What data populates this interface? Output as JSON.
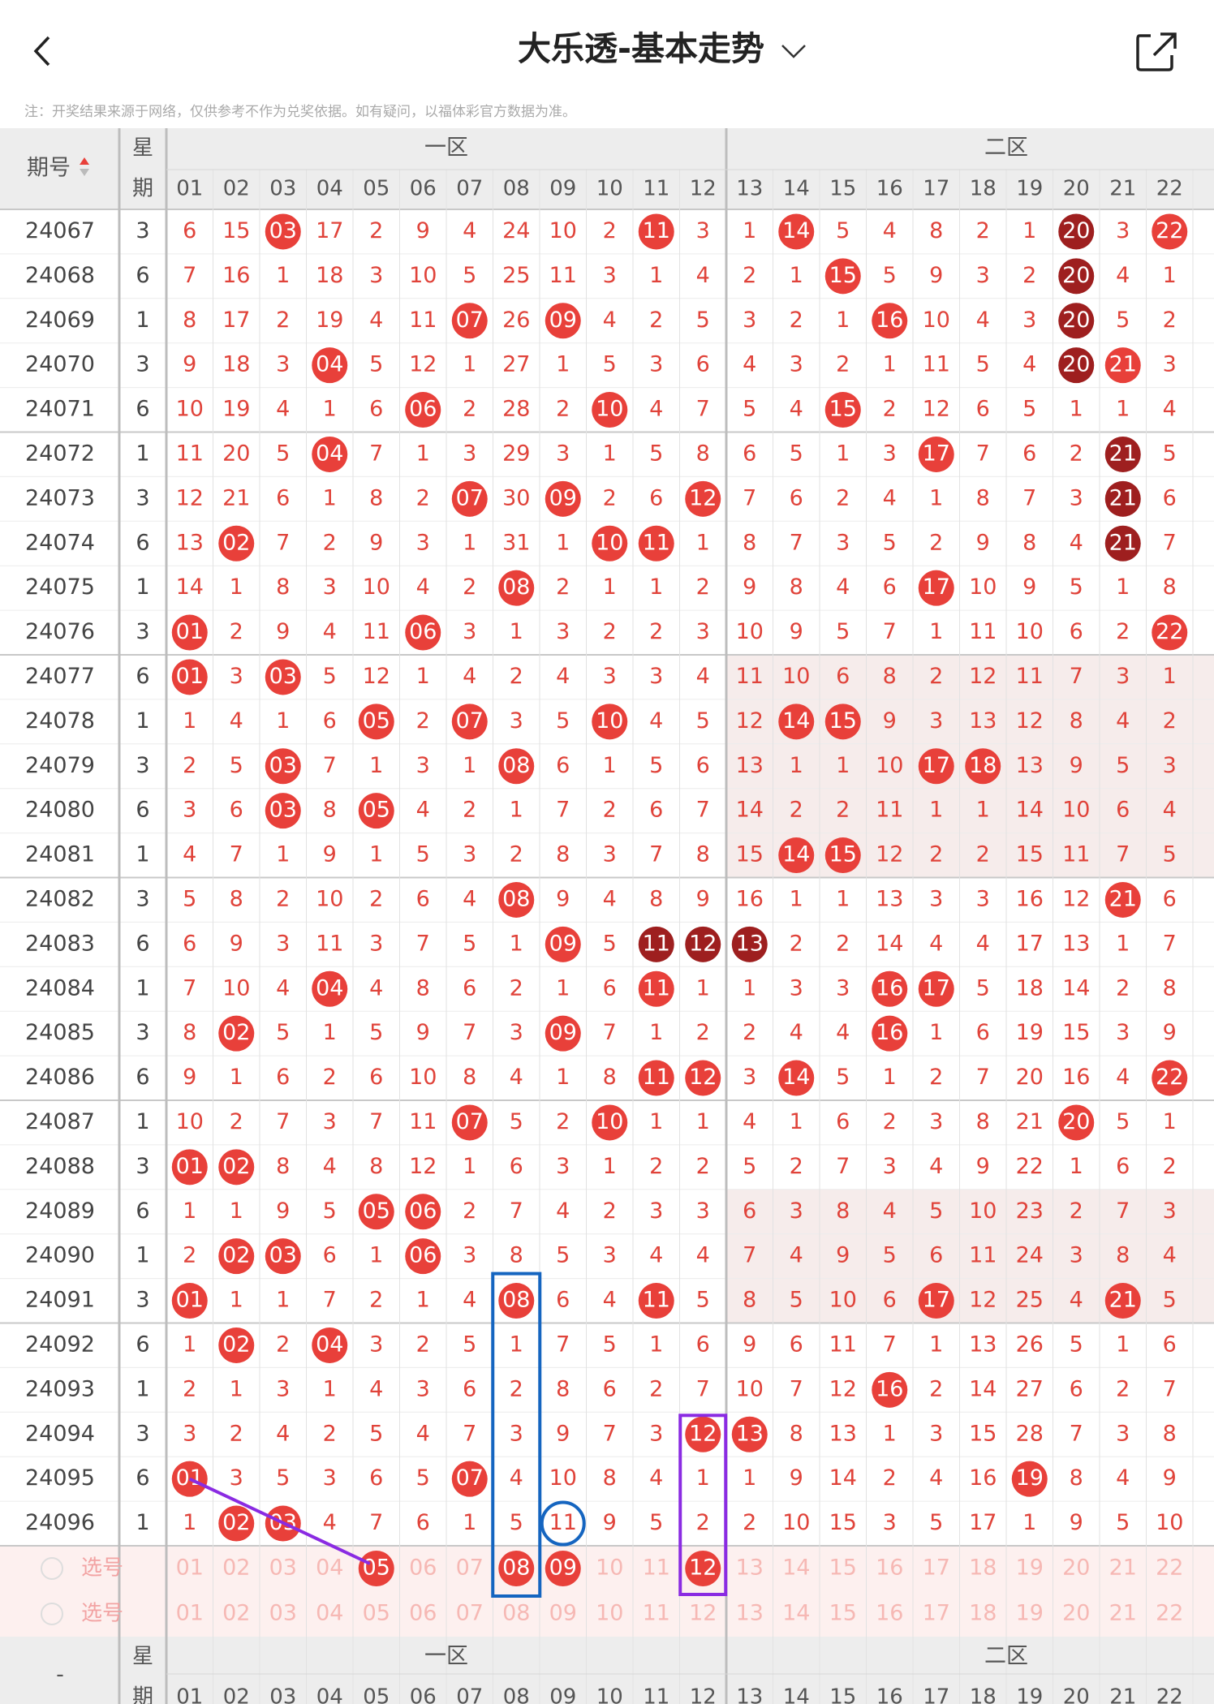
{
  "header": {
    "title": "大乐透-基本走势",
    "note": "注：开奖结果来源于网络，仅供参考不作为兑奖依据。如有疑问，以福体彩官方数据为准。"
  },
  "table": {
    "period_label": "期号",
    "week_label": [
      "星",
      "期"
    ],
    "zones": [
      "一区",
      "二区"
    ],
    "columns": [
      "01",
      "02",
      "03",
      "04",
      "05",
      "06",
      "07",
      "08",
      "09",
      "10",
      "11",
      "12",
      "13",
      "14",
      "15",
      "16",
      "17",
      "18",
      "19",
      "20",
      "21",
      "22"
    ],
    "rows": [
      {
        "period": "24067",
        "week": "3",
        "cells": [
          "6",
          "15",
          "03",
          "17",
          "2",
          "9",
          "4",
          "24",
          "10",
          "2",
          "11",
          "3",
          "1",
          "14",
          "5",
          "4",
          "8",
          "2",
          "1",
          "20",
          "3",
          "22"
        ],
        "hits": [
          "03",
          "11",
          "14",
          "20",
          "22"
        ],
        "dark": [
          "20"
        ]
      },
      {
        "period": "24068",
        "week": "6",
        "cells": [
          "7",
          "16",
          "1",
          "18",
          "3",
          "10",
          "5",
          "25",
          "11",
          "3",
          "1",
          "4",
          "2",
          "1",
          "15",
          "5",
          "9",
          "3",
          "2",
          "20",
          "4",
          "1"
        ],
        "hits": [
          "15",
          "20"
        ],
        "dark": [
          "20"
        ]
      },
      {
        "period": "24069",
        "week": "1",
        "cells": [
          "8",
          "17",
          "2",
          "19",
          "4",
          "11",
          "07",
          "26",
          "09",
          "4",
          "2",
          "5",
          "3",
          "2",
          "1",
          "16",
          "10",
          "4",
          "3",
          "20",
          "5",
          "2"
        ],
        "hits": [
          "07",
          "09",
          "16",
          "20"
        ],
        "dark": [
          "20"
        ]
      },
      {
        "period": "24070",
        "week": "3",
        "cells": [
          "9",
          "18",
          "3",
          "04",
          "5",
          "12",
          "1",
          "27",
          "1",
          "5",
          "3",
          "6",
          "4",
          "3",
          "2",
          "1",
          "11",
          "5",
          "4",
          "20",
          "21",
          "3"
        ],
        "hits": [
          "04",
          "20",
          "21"
        ],
        "dark": [
          "20"
        ]
      },
      {
        "period": "24071",
        "week": "6",
        "cells": [
          "10",
          "19",
          "4",
          "1",
          "6",
          "06",
          "2",
          "28",
          "2",
          "10",
          "4",
          "7",
          "5",
          "4",
          "15",
          "2",
          "12",
          "6",
          "5",
          "1",
          "1",
          "4"
        ],
        "hits": [
          "06",
          "10",
          "15"
        ],
        "dark": []
      },
      {
        "period": "24072",
        "week": "1",
        "cells": [
          "11",
          "20",
          "5",
          "04",
          "7",
          "1",
          "3",
          "29",
          "3",
          "1",
          "5",
          "8",
          "6",
          "5",
          "1",
          "3",
          "17",
          "7",
          "6",
          "2",
          "21",
          "5"
        ],
        "hits": [
          "04",
          "17",
          "21"
        ],
        "dark": [
          "21"
        ]
      },
      {
        "period": "24073",
        "week": "3",
        "cells": [
          "12",
          "21",
          "6",
          "1",
          "8",
          "2",
          "07",
          "30",
          "09",
          "2",
          "6",
          "12",
          "7",
          "6",
          "2",
          "4",
          "1",
          "8",
          "7",
          "3",
          "21",
          "6"
        ],
        "hits": [
          "07",
          "09",
          "12",
          "21"
        ],
        "dark": [
          "21"
        ]
      },
      {
        "period": "24074",
        "week": "6",
        "cells": [
          "13",
          "02",
          "7",
          "2",
          "9",
          "3",
          "1",
          "31",
          "1",
          "10",
          "11",
          "1",
          "8",
          "7",
          "3",
          "5",
          "2",
          "9",
          "8",
          "4",
          "21",
          "7"
        ],
        "hits": [
          "02",
          "10",
          "11",
          "21"
        ],
        "dark": [
          "21"
        ]
      },
      {
        "period": "24075",
        "week": "1",
        "cells": [
          "14",
          "1",
          "8",
          "3",
          "10",
          "4",
          "2",
          "08",
          "2",
          "1",
          "1",
          "2",
          "9",
          "8",
          "4",
          "6",
          "17",
          "10",
          "9",
          "5",
          "1",
          "8"
        ],
        "hits": [
          "08",
          "17"
        ],
        "dark": []
      },
      {
        "period": "24076",
        "week": "3",
        "cells": [
          "01",
          "2",
          "9",
          "4",
          "11",
          "06",
          "3",
          "1",
          "3",
          "2",
          "2",
          "3",
          "10",
          "9",
          "5",
          "7",
          "1",
          "11",
          "10",
          "6",
          "2",
          "22"
        ],
        "hits": [
          "01",
          "06",
          "22"
        ],
        "dark": []
      },
      {
        "period": "24077",
        "week": "6",
        "cells": [
          "01",
          "3",
          "03",
          "5",
          "12",
          "1",
          "4",
          "2",
          "4",
          "3",
          "3",
          "4",
          "11",
          "10",
          "6",
          "8",
          "2",
          "12",
          "11",
          "7",
          "3",
          "1"
        ],
        "hits": [
          "01",
          "03"
        ],
        "dark": []
      },
      {
        "period": "24078",
        "week": "1",
        "cells": [
          "1",
          "4",
          "1",
          "6",
          "05",
          "2",
          "07",
          "3",
          "5",
          "10",
          "4",
          "5",
          "12",
          "14",
          "15",
          "9",
          "3",
          "13",
          "12",
          "8",
          "4",
          "2"
        ],
        "hits": [
          "05",
          "07",
          "10",
          "14",
          "15"
        ],
        "dark": []
      },
      {
        "period": "24079",
        "week": "3",
        "cells": [
          "2",
          "5",
          "03",
          "7",
          "1",
          "3",
          "1",
          "08",
          "6",
          "1",
          "5",
          "6",
          "13",
          "1",
          "1",
          "10",
          "17",
          "18",
          "13",
          "9",
          "5",
          "3"
        ],
        "hits": [
          "03",
          "08",
          "17",
          "18"
        ],
        "dark": []
      },
      {
        "period": "24080",
        "week": "6",
        "cells": [
          "3",
          "6",
          "03",
          "8",
          "05",
          "4",
          "2",
          "1",
          "7",
          "2",
          "6",
          "7",
          "14",
          "2",
          "2",
          "11",
          "1",
          "1",
          "14",
          "10",
          "6",
          "4"
        ],
        "hits": [
          "03",
          "05"
        ],
        "dark": []
      },
      {
        "period": "24081",
        "week": "1",
        "cells": [
          "4",
          "7",
          "1",
          "9",
          "1",
          "5",
          "3",
          "2",
          "8",
          "3",
          "7",
          "8",
          "15",
          "14",
          "15",
          "12",
          "2",
          "2",
          "15",
          "11",
          "7",
          "5"
        ],
        "hits": [
          "14",
          "15"
        ],
        "dark": []
      },
      {
        "period": "24082",
        "week": "3",
        "cells": [
          "5",
          "8",
          "2",
          "10",
          "2",
          "6",
          "4",
          "08",
          "9",
          "4",
          "8",
          "9",
          "16",
          "1",
          "1",
          "13",
          "3",
          "3",
          "16",
          "12",
          "21",
          "6"
        ],
        "hits": [
          "08",
          "21"
        ],
        "dark": []
      },
      {
        "period": "24083",
        "week": "6",
        "cells": [
          "6",
          "9",
          "3",
          "11",
          "3",
          "7",
          "5",
          "1",
          "09",
          "5",
          "11",
          "12",
          "13",
          "2",
          "2",
          "14",
          "4",
          "4",
          "17",
          "13",
          "1",
          "7"
        ],
        "hits": [
          "09",
          "11",
          "12",
          "13"
        ],
        "dark": [
          "11",
          "12",
          "13"
        ]
      },
      {
        "period": "24084",
        "week": "1",
        "cells": [
          "7",
          "10",
          "4",
          "04",
          "4",
          "8",
          "6",
          "2",
          "1",
          "6",
          "11",
          "1",
          "1",
          "3",
          "3",
          "16",
          "17",
          "5",
          "18",
          "14",
          "2",
          "8"
        ],
        "hits": [
          "04",
          "11",
          "16",
          "17"
        ],
        "dark": []
      },
      {
        "period": "24085",
        "week": "3",
        "cells": [
          "8",
          "02",
          "5",
          "1",
          "5",
          "9",
          "7",
          "3",
          "09",
          "7",
          "1",
          "2",
          "2",
          "4",
          "4",
          "16",
          "1",
          "6",
          "19",
          "15",
          "3",
          "9"
        ],
        "hits": [
          "02",
          "09",
          "16"
        ],
        "dark": []
      },
      {
        "period": "24086",
        "week": "6",
        "cells": [
          "9",
          "1",
          "6",
          "2",
          "6",
          "10",
          "8",
          "4",
          "1",
          "8",
          "11",
          "12",
          "3",
          "14",
          "5",
          "1",
          "2",
          "7",
          "20",
          "16",
          "4",
          "22"
        ],
        "hits": [
          "11",
          "12",
          "14",
          "22"
        ],
        "dark": []
      },
      {
        "period": "24087",
        "week": "1",
        "cells": [
          "10",
          "2",
          "7",
          "3",
          "7",
          "11",
          "07",
          "5",
          "2",
          "10",
          "1",
          "1",
          "4",
          "1",
          "6",
          "2",
          "3",
          "8",
          "21",
          "20",
          "5",
          "1"
        ],
        "hits": [
          "07",
          "10",
          "20"
        ],
        "dark": []
      },
      {
        "period": "24088",
        "week": "3",
        "cells": [
          "01",
          "02",
          "8",
          "4",
          "8",
          "12",
          "1",
          "6",
          "3",
          "1",
          "2",
          "2",
          "5",
          "2",
          "7",
          "3",
          "4",
          "9",
          "22",
          "1",
          "6",
          "2"
        ],
        "hits": [
          "01",
          "02"
        ],
        "dark": []
      },
      {
        "period": "24089",
        "week": "6",
        "cells": [
          "1",
          "1",
          "9",
          "5",
          "05",
          "06",
          "2",
          "7",
          "4",
          "2",
          "3",
          "3",
          "6",
          "3",
          "8",
          "4",
          "5",
          "10",
          "23",
          "2",
          "7",
          "3"
        ],
        "hits": [
          "05",
          "06"
        ],
        "dark": []
      },
      {
        "period": "24090",
        "week": "1",
        "cells": [
          "2",
          "02",
          "03",
          "6",
          "1",
          "06",
          "3",
          "8",
          "5",
          "3",
          "4",
          "4",
          "7",
          "4",
          "9",
          "5",
          "6",
          "11",
          "24",
          "3",
          "8",
          "4"
        ],
        "hits": [
          "02",
          "03",
          "06"
        ],
        "dark": []
      },
      {
        "period": "24091",
        "week": "3",
        "cells": [
          "01",
          "1",
          "1",
          "7",
          "2",
          "1",
          "4",
          "08",
          "6",
          "4",
          "11",
          "5",
          "8",
          "5",
          "10",
          "6",
          "17",
          "12",
          "25",
          "4",
          "21",
          "5"
        ],
        "hits": [
          "01",
          "08",
          "11",
          "17",
          "21"
        ],
        "dark": []
      },
      {
        "period": "24092",
        "week": "6",
        "cells": [
          "1",
          "02",
          "2",
          "04",
          "3",
          "2",
          "5",
          "1",
          "7",
          "5",
          "1",
          "6",
          "9",
          "6",
          "11",
          "7",
          "1",
          "13",
          "26",
          "5",
          "1",
          "6"
        ],
        "hits": [
          "02",
          "04"
        ],
        "dark": []
      },
      {
        "period": "24093",
        "week": "1",
        "cells": [
          "2",
          "1",
          "3",
          "1",
          "4",
          "3",
          "6",
          "2",
          "8",
          "6",
          "2",
          "7",
          "10",
          "7",
          "12",
          "16",
          "2",
          "14",
          "27",
          "6",
          "2",
          "7"
        ],
        "hits": [
          "16"
        ],
        "dark": []
      },
      {
        "period": "24094",
        "week": "3",
        "cells": [
          "3",
          "2",
          "4",
          "2",
          "5",
          "4",
          "7",
          "3",
          "9",
          "7",
          "3",
          "12",
          "13",
          "8",
          "13",
          "1",
          "3",
          "15",
          "28",
          "7",
          "3",
          "8"
        ],
        "hits": [
          "12",
          "13"
        ],
        "dark": []
      },
      {
        "period": "24095",
        "week": "6",
        "cells": [
          "01",
          "3",
          "5",
          "3",
          "6",
          "5",
          "07",
          "4",
          "10",
          "8",
          "4",
          "1",
          "1",
          "9",
          "14",
          "2",
          "4",
          "16",
          "19",
          "8",
          "4",
          "9"
        ],
        "hits": [
          "01",
          "07",
          "19"
        ],
        "dark": []
      },
      {
        "period": "24096",
        "week": "1",
        "cells": [
          "1",
          "02",
          "03",
          "4",
          "7",
          "6",
          "1",
          "5",
          "11",
          "9",
          "5",
          "2",
          "2",
          "10",
          "15",
          "3",
          "5",
          "17",
          "1",
          "9",
          "5",
          "10"
        ],
        "hits": [
          "02",
          "03"
        ],
        "dark": []
      }
    ],
    "picker": [
      {
        "label": "选号",
        "selected": [
          "05",
          "08",
          "09",
          "12"
        ]
      },
      {
        "label": "选号",
        "selected": []
      }
    ],
    "footer": {
      "period_label": "-",
      "week_label": [
        "星",
        "期"
      ],
      "zones": [
        "一区",
        "二区"
      ]
    }
  }
}
